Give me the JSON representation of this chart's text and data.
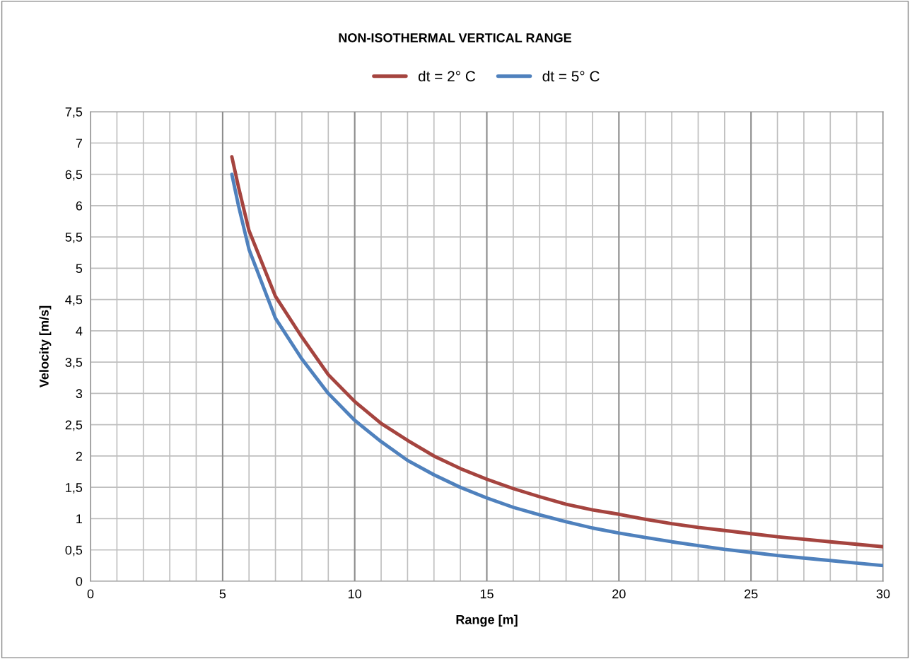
{
  "chart_data": {
    "type": "line",
    "title": "NON-ISOTHERMAL VERTICAL RANGE",
    "xlabel": "Range [m]",
    "ylabel": "Velocity [m/s]",
    "xlim": [
      0,
      30
    ],
    "ylim": [
      0,
      7.5
    ],
    "xticks": [
      0,
      {
        "value": 1,
        "label": null
      },
      {
        "value": 2,
        "label": null
      },
      {
        "value": 3,
        "label": null
      },
      {
        "value": 4,
        "label": null
      },
      5,
      {
        "value": 6,
        "label": null
      },
      {
        "value": 7,
        "label": null
      },
      {
        "value": 8,
        "label": null
      },
      {
        "value": 9,
        "label": null
      },
      10,
      {
        "value": 11,
        "label": null
      },
      {
        "value": 12,
        "label": null
      },
      {
        "value": 13,
        "label": null
      },
      {
        "value": 14,
        "label": null
      },
      15,
      {
        "value": 16,
        "label": null
      },
      {
        "value": 17,
        "label": null
      },
      {
        "value": 18,
        "label": null
      },
      {
        "value": 19,
        "label": null
      },
      20,
      {
        "value": 21,
        "label": null
      },
      {
        "value": 22,
        "label": null
      },
      {
        "value": 23,
        "label": null
      },
      {
        "value": 24,
        "label": null
      },
      25,
      {
        "value": 26,
        "label": null
      },
      {
        "value": 27,
        "label": null
      },
      {
        "value": 28,
        "label": null
      },
      {
        "value": 29,
        "label": null
      },
      30
    ],
    "yticks": [
      0,
      {
        "value": 0.5,
        "label": "0,5"
      },
      1,
      {
        "value": 1.5,
        "label": "1,5"
      },
      2,
      {
        "value": 2.5,
        "label": "2,5"
      },
      3,
      {
        "value": 3.5,
        "label": "3,5"
      },
      4,
      {
        "value": 4.5,
        "label": "4,5"
      },
      5,
      {
        "value": 5.5,
        "label": "5,5"
      },
      6,
      {
        "value": 6.5,
        "label": "6,5"
      },
      7,
      {
        "value": 7.5,
        "label": "7,5"
      }
    ],
    "grid": true,
    "legend": "top",
    "marker": "none",
    "line_style": "solid",
    "series": [
      {
        "name": "dt = 2° C",
        "color": "#a5443f",
        "x": [
          5.35,
          5.6,
          6,
          7,
          8,
          9,
          10,
          11,
          12,
          13,
          14,
          15,
          16,
          17,
          18,
          19,
          20,
          21,
          22,
          23,
          24,
          25,
          26,
          27,
          28,
          29,
          30
        ],
        "values": [
          6.78,
          6.3,
          5.6,
          4.55,
          3.9,
          3.3,
          2.87,
          2.52,
          2.25,
          2.0,
          1.8,
          1.63,
          1.48,
          1.35,
          1.23,
          1.14,
          1.07,
          0.99,
          0.92,
          0.86,
          0.81,
          0.76,
          0.71,
          0.67,
          0.63,
          0.59,
          0.55
        ]
      },
      {
        "name": "dt = 5° C",
        "color": "#4f81bd",
        "x": [
          5.35,
          5.6,
          6,
          7,
          8,
          9,
          10,
          11,
          12,
          13,
          14,
          15,
          16,
          17,
          18,
          19,
          20,
          21,
          22,
          23,
          24,
          25,
          26,
          27,
          28,
          29,
          30
        ],
        "values": [
          6.5,
          6.0,
          5.3,
          4.2,
          3.55,
          3.0,
          2.57,
          2.23,
          1.93,
          1.7,
          1.5,
          1.33,
          1.18,
          1.06,
          0.95,
          0.85,
          0.77,
          0.7,
          0.63,
          0.57,
          0.51,
          0.46,
          0.41,
          0.37,
          0.33,
          0.29,
          0.25
        ]
      }
    ]
  }
}
